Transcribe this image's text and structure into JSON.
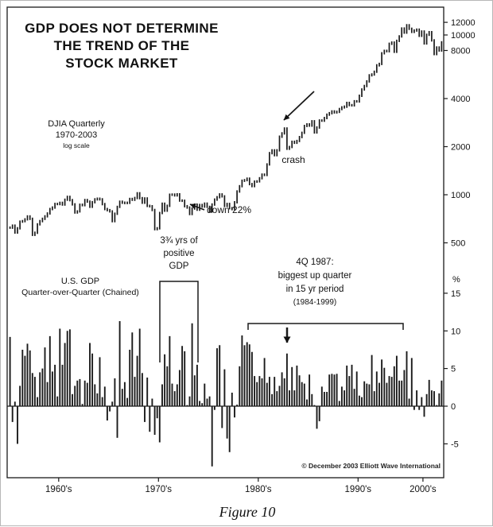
{
  "figure": {
    "title_lines": [
      "GDP DOES NOT DETERMINE",
      "THE TREND OF THE",
      "STOCK MARKET"
    ],
    "caption": "Figure 10",
    "copyright": "© December 2003 Elliott Wave International",
    "ink_color": "#1a1a1a",
    "background": "#ffffff"
  },
  "top_chart": {
    "label_line1": "DJIA Quarterly",
    "label_line2": "1970-2003",
    "scale_note": "log scale",
    "crash_label": "crash",
    "down_label": "down 22%"
  },
  "bottom_chart": {
    "label_line1": "U.S. GDP",
    "label_line2": "Quarter-over-Quarter (Chained)",
    "pct_label": "%",
    "positive_lines": [
      "3¾ yrs of",
      "positive",
      "GDP"
    ],
    "q487_lines": [
      "4Q 1987:",
      "biggest up quarter",
      "in 15 yr period",
      "(1984-1999)"
    ]
  },
  "x_axis": {
    "labels": [
      "1960's",
      "1970's",
      "1980's",
      "1990's",
      "2000's"
    ],
    "center_years": [
      1965,
      1975,
      1985,
      1995,
      2001.5
    ]
  },
  "chart_data": [
    {
      "type": "bar",
      "name": "DJIA quarterly (high-low bars, log scale)",
      "x_start": 1960,
      "x_step": 0.25,
      "yscale": "log",
      "ylim": [
        450,
        15000
      ],
      "yticks": [
        12000,
        10000,
        8000,
        4000,
        2000,
        1000,
        500
      ],
      "values": [
        622,
        640,
        580,
        616,
        678,
        683,
        701,
        731,
        706,
        561,
        578,
        652,
        683,
        706,
        732,
        763,
        813,
        831,
        875,
        874,
        889,
        868,
        930,
        969,
        924,
        870,
        774,
        786,
        865,
        860,
        926,
        905,
        840,
        897,
        935,
        944,
        935,
        873,
        813,
        800,
        786,
        683,
        760,
        839,
        904,
        891,
        887,
        890,
        940,
        929,
        953,
        1020,
        951,
        891,
        947,
        851,
        846,
        802,
        608,
        616,
        768,
        878,
        794,
        852,
        999,
        1002,
        990,
        1005,
        919,
        916,
        847,
        831,
        757,
        819,
        866,
        805,
        862,
        842,
        879,
        839,
        786,
        868,
        932,
        964,
        1004,
        976,
        850,
        875,
        823,
        812,
        896,
        1047,
        1130,
        1222,
        1233,
        1259,
        1165,
        1132,
        1207,
        1212,
        1267,
        1335,
        1329,
        1547,
        1819,
        1893,
        1768,
        1896,
        2305,
        2419,
        2596,
        1939,
        1988,
        2142,
        2113,
        2169,
        2294,
        2440,
        2693,
        2753,
        2707,
        2881,
        2453,
        2634,
        2914,
        2907,
        3017,
        3169,
        3236,
        3319,
        3272,
        3301,
        3435,
        3518,
        3555,
        3754,
        3636,
        3625,
        3843,
        3834,
        4158,
        4556,
        4789,
        5117,
        5587,
        5655,
        5882,
        6448,
        6584,
        7673,
        7945,
        7908,
        8800,
        8952,
        7843,
        9181,
        9786,
        10971,
        10337,
        11497,
        10922,
        10448,
        10651,
        10788,
        9879,
        10502,
        8848,
        10022,
        10404,
        9243,
        7592,
        8342,
        7992,
        8985
      ]
    },
    {
      "type": "bar",
      "name": "U.S. GDP quarter-over-quarter % change (chained)",
      "x_start": 1960,
      "x_step": 0.25,
      "ylabel": "%",
      "ylim": [
        -9,
        17
      ],
      "yticks": [
        15,
        10,
        5,
        0,
        -5
      ],
      "values": [
        9.2,
        -2.1,
        0.6,
        -5.0,
        2.7,
        7.5,
        6.7,
        8.3,
        7.4,
        4.4,
        3.9,
        1.2,
        4.5,
        5.0,
        7.8,
        3.2,
        9.3,
        4.6,
        5.5,
        1.3,
        10.3,
        5.5,
        8.4,
        10.0,
        10.2,
        1.6,
        2.7,
        3.4,
        3.6,
        0.3,
        3.4,
        3.1,
        8.4,
        7.0,
        2.9,
        1.7,
        6.5,
        1.2,
        2.6,
        -1.9,
        -0.7,
        0.6,
        3.7,
        -4.2,
        11.3,
        2.3,
        3.2,
        1.1,
        7.5,
        9.8,
        3.9,
        6.7,
        10.3,
        4.4,
        -2.1,
        3.8,
        -3.4,
        1.0,
        -3.8,
        -1.6,
        -4.8,
        2.9,
        6.9,
        5.3,
        9.3,
        3.0,
        2.0,
        2.9,
        4.8,
        8.0,
        7.3,
        0.0,
        1.3,
        11.0,
        4.1,
        5.5,
        0.7,
        0.4,
        3.0,
        1.0,
        1.3,
        -8.0,
        -0.5,
        7.7,
        8.1,
        -2.9,
        4.9,
        -4.3,
        -6.1,
        1.8,
        -1.5,
        0.2,
        5.3,
        9.4,
        8.1,
        8.5,
        8.2,
        7.2,
        4.0,
        3.2,
        4.0,
        3.7,
        6.4,
        3.1,
        3.9,
        1.6,
        3.9,
        2.0,
        2.7,
        4.5,
        3.7,
        7.0,
        2.1,
        5.2,
        2.1,
        5.4,
        4.1,
        3.2,
        3.0,
        0.9,
        4.2,
        1.6,
        0.0,
        -3.0,
        -2.0,
        2.6,
        1.9,
        1.9,
        4.2,
        4.3,
        4.2,
        4.3,
        0.7,
        2.6,
        2.1,
        5.4,
        4.0,
        5.5,
        2.3,
        4.6,
        1.4,
        1.2,
        3.3,
        3.0,
        2.9,
        6.8,
        2.0,
        4.6,
        3.1,
        6.2,
        5.1,
        3.1,
        4.0,
        3.9,
        5.3,
        6.7,
        3.4,
        3.4,
        4.8,
        7.3,
        1.0,
        6.4,
        -0.5,
        2.1,
        -0.5,
        1.2,
        -1.4,
        1.6,
        3.5,
        2.1,
        2.0,
        0.1,
        1.7,
        3.4
      ]
    }
  ]
}
